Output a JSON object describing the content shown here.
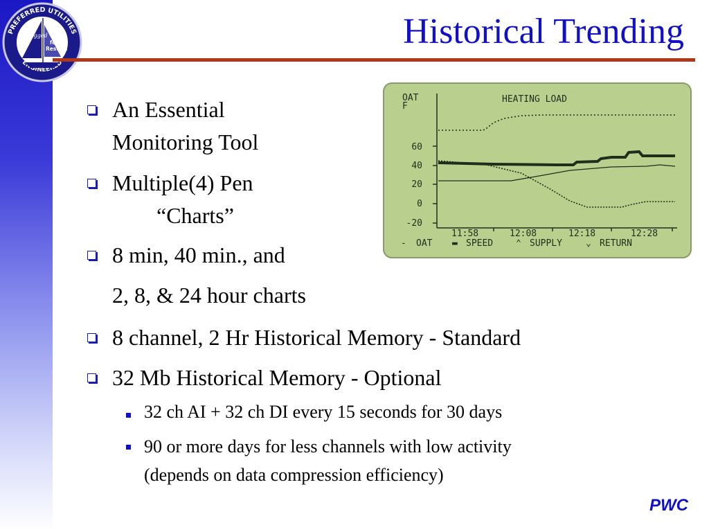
{
  "slide": {
    "title": "Historical Trending",
    "brand": "PWC"
  },
  "logo": {
    "top_text": "PREFERRED UTILITIES",
    "bottom_text": "ENGINEERED",
    "left_text": "Rigged",
    "right_text_1": "for",
    "right_text_2": "Results"
  },
  "bullets": [
    {
      "line1": "An Essential",
      "line2": "Monitoring Tool"
    },
    {
      "line1": "Multiple(4) Pen",
      "line2": "“Charts”"
    },
    {
      "line1": "8 min, 40 min., and",
      "line2": "2, 8, & 24 hour charts"
    },
    {
      "line1": "8 channel, 2 Hr Historical Memory - Standard"
    },
    {
      "line1": "32 Mb Historical Memory - Optional"
    }
  ],
  "sub_bullets": [
    {
      "line1": "32 ch AI + 32 ch DI every 15 seconds for 30 days"
    },
    {
      "line1": "90 or more days for less channels with low activity",
      "line2": "(depends on data compression efficiency)"
    }
  ],
  "lcd": {
    "title": "HEATING LOAD",
    "y_label_1": "OAT",
    "y_label_2": "F",
    "y_ticks": [
      "60",
      "40",
      "20",
      "0",
      "-20"
    ],
    "x_ticks": [
      "11:58",
      "12:08",
      "12:18",
      "12:28"
    ],
    "legend": [
      {
        "symbol": "-",
        "label": "OAT"
      },
      {
        "symbol": "▬",
        "label": "SPEED"
      },
      {
        "symbol": "⌃",
        "label": "SUPPLY"
      },
      {
        "symbol": "⌄",
        "label": "RETURN"
      }
    ],
    "colors": {
      "background": "#b9cf8d",
      "ink": "#1f2d1c",
      "frame": "#8a9a6a"
    }
  }
}
